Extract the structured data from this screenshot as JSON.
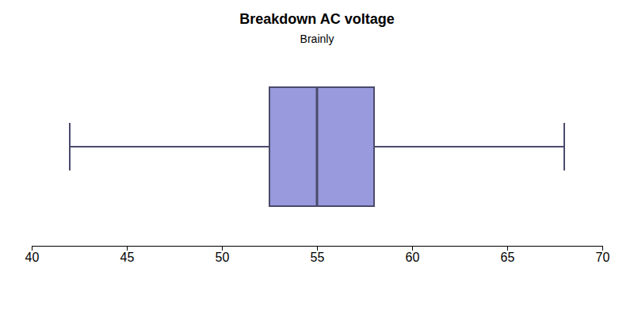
{
  "chart_data": {
    "type": "box",
    "title": "Breakdown AC voltage",
    "subtitle": "Brainly",
    "whisker_low": 42,
    "q1": 52.5,
    "median": 55,
    "q3": 58,
    "whisker_high": 68,
    "color": "#9999dd",
    "xlim": [
      40,
      70
    ],
    "xticks": [
      40,
      45,
      50,
      55,
      60,
      65,
      70
    ],
    "grid": false
  }
}
